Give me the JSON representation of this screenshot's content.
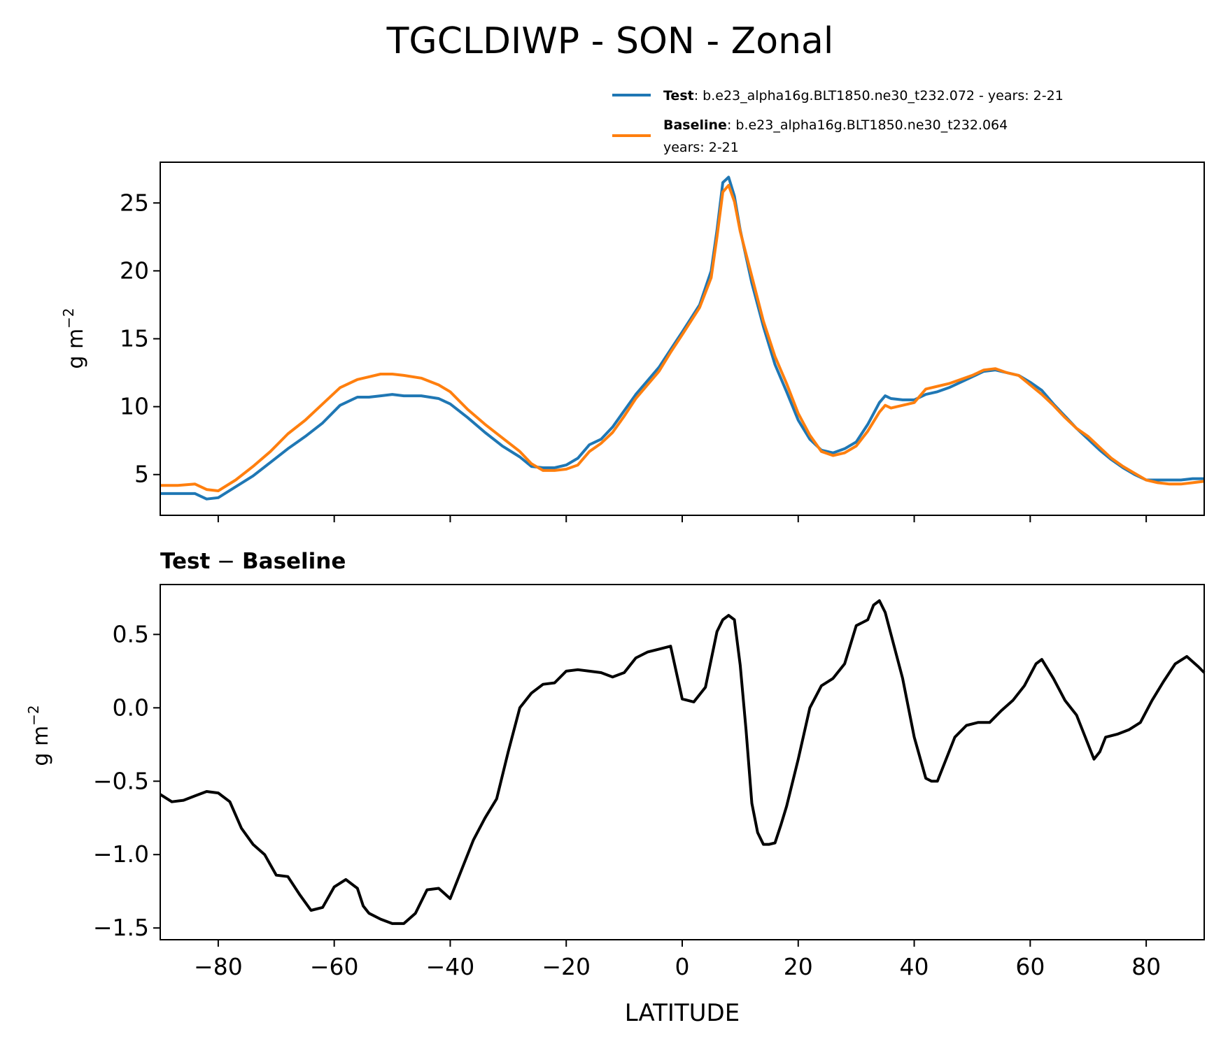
{
  "figure_title": "TGCLDIWP - SON - Zonal",
  "legend": {
    "test_label": "Test",
    "test_text": ": b.e23_alpha16g.BLT1850.ne30_t232.072 - years: 2-21",
    "baseline_label": "Baseline",
    "baseline_text": ": b.e23_alpha16g.BLT1850.ne30_t232.064",
    "baseline_text2": "years: 2-21"
  },
  "colors": {
    "test": "#1f77b4",
    "baseline": "#ff7f0e",
    "diff": "#000000"
  },
  "top_ylabel": "g m",
  "bottom_ylabel": "g m",
  "ylabel_exponent": "−2",
  "bottom_title_left": "Test",
  "bottom_title_sep": " − ",
  "bottom_title_right": "Baseline",
  "xlabel": "LATITUDE",
  "chart_data": [
    {
      "type": "line",
      "panel": "top",
      "title": "TGCLDIWP - SON - Zonal",
      "xlabel": "",
      "ylabel": "g m−2",
      "xlim": [
        -90,
        90
      ],
      "ylim": [
        2,
        28
      ],
      "xticks": [
        -80,
        -60,
        -40,
        -20,
        0,
        20,
        40,
        60,
        80
      ],
      "yticks": [
        5,
        10,
        15,
        20,
        25
      ],
      "ytick_labels": [
        "5",
        "10",
        "15",
        "20",
        "25"
      ],
      "series": [
        {
          "name": "Test",
          "x": [
            -90,
            -87,
            -84,
            -82,
            -80,
            -77,
            -74,
            -71,
            -68,
            -65,
            -62,
            -59,
            -56,
            -54,
            -52,
            -50,
            -48,
            -45,
            -42,
            -40,
            -37,
            -34,
            -31,
            -28,
            -26,
            -24,
            -22,
            -20,
            -18,
            -16,
            -14,
            -12,
            -10,
            -8,
            -6,
            -4,
            -2,
            0,
            3,
            5,
            6,
            7,
            8,
            9,
            10,
            12,
            14,
            16,
            18,
            20,
            22,
            24,
            26,
            28,
            30,
            32,
            34,
            35,
            36,
            38,
            40,
            42,
            44,
            46,
            48,
            50,
            52,
            54,
            56,
            58,
            60,
            62,
            64,
            66,
            68,
            70,
            72,
            74,
            76,
            78,
            80,
            82,
            84,
            86,
            88,
            90
          ],
          "values": [
            3.6,
            3.6,
            3.6,
            3.2,
            3.3,
            4.1,
            4.9,
            5.9,
            6.9,
            7.8,
            8.8,
            10.1,
            10.7,
            10.7,
            10.8,
            10.9,
            10.8,
            10.8,
            10.6,
            10.2,
            9.2,
            8.1,
            7.1,
            6.3,
            5.6,
            5.5,
            5.5,
            5.7,
            6.2,
            7.2,
            7.6,
            8.5,
            9.7,
            10.9,
            11.9,
            12.9,
            14.2,
            15.5,
            17.5,
            20,
            23,
            26.5,
            26.9,
            25.5,
            23,
            19.1,
            15.9,
            13.1,
            11.1,
            9,
            7.6,
            6.8,
            6.6,
            6.9,
            7.4,
            8.7,
            10.3,
            10.8,
            10.6,
            10.5,
            10.5,
            10.9,
            11.1,
            11.4,
            11.8,
            12.2,
            12.6,
            12.7,
            12.5,
            12.3,
            11.8,
            11.2,
            10.2,
            9.3,
            8.4,
            7.6,
            6.8,
            6.1,
            5.5,
            5,
            4.6,
            4.6,
            4.6,
            4.6,
            4.7,
            4.7
          ]
        },
        {
          "name": "Baseline",
          "x": [
            -90,
            -87,
            -84,
            -82,
            -80,
            -77,
            -74,
            -71,
            -68,
            -65,
            -62,
            -59,
            -56,
            -54,
            -52,
            -50,
            -48,
            -45,
            -42,
            -40,
            -37,
            -34,
            -31,
            -28,
            -26,
            -24,
            -22,
            -20,
            -18,
            -16,
            -14,
            -12,
            -10,
            -8,
            -6,
            -4,
            -2,
            0,
            3,
            5,
            6,
            7,
            8,
            9,
            10,
            12,
            14,
            16,
            18,
            20,
            22,
            24,
            26,
            28,
            30,
            32,
            34,
            35,
            36,
            38,
            40,
            42,
            44,
            46,
            48,
            50,
            52,
            54,
            56,
            58,
            60,
            62,
            64,
            66,
            68,
            70,
            72,
            74,
            76,
            78,
            80,
            82,
            84,
            86,
            88,
            90
          ],
          "values": [
            4.2,
            4.2,
            4.3,
            3.9,
            3.8,
            4.6,
            5.6,
            6.7,
            8,
            9,
            10.2,
            11.4,
            12,
            12.2,
            12.4,
            12.4,
            12.3,
            12.1,
            11.6,
            11.1,
            9.8,
            8.7,
            7.7,
            6.7,
            5.8,
            5.3,
            5.3,
            5.4,
            5.7,
            6.7,
            7.3,
            8.1,
            9.3,
            10.6,
            11.6,
            12.6,
            14,
            15.3,
            17.3,
            19.5,
            22.5,
            25.8,
            26.3,
            25.1,
            22.9,
            19.6,
            16.3,
            13.7,
            11.7,
            9.5,
            7.9,
            6.7,
            6.4,
            6.6,
            7.1,
            8.2,
            9.6,
            10.1,
            9.9,
            10.1,
            10.3,
            11.3,
            11.5,
            11.7,
            12,
            12.3,
            12.7,
            12.8,
            12.5,
            12.3,
            11.6,
            10.9,
            10.1,
            9.2,
            8.4,
            7.8,
            7,
            6.2,
            5.6,
            5.1,
            4.6,
            4.4,
            4.3,
            4.3,
            4.4,
            4.5
          ]
        }
      ]
    },
    {
      "type": "line",
      "panel": "bottom",
      "title": "Test − Baseline",
      "xlabel": "LATITUDE",
      "ylabel": "g m−2",
      "xlim": [
        -90,
        90
      ],
      "ylim": [
        -1.58,
        0.84
      ],
      "xticks": [
        -80,
        -60,
        -40,
        -20,
        0,
        20,
        40,
        60,
        80
      ],
      "xtick_labels": [
        "−80",
        "−60",
        "−40",
        "−20",
        "0",
        "20",
        "40",
        "60",
        "80"
      ],
      "yticks": [
        0.5,
        0,
        -0.5,
        -1,
        -1.5
      ],
      "ytick_labels": [
        "0.5",
        "0.0",
        "−0.5",
        "−1.0",
        "−1.5"
      ],
      "series": [
        {
          "name": "Test − Baseline",
          "x": [
            -90,
            -88,
            -86,
            -84,
            -82,
            -80,
            -78,
            -76,
            -74,
            -72,
            -70,
            -68,
            -66,
            -64,
            -62,
            -60,
            -58,
            -56,
            -55,
            -54,
            -52,
            -50,
            -48,
            -46,
            -44,
            -42,
            -40,
            -38,
            -36,
            -34,
            -32,
            -30,
            -28,
            -26,
            -24,
            -22,
            -20,
            -18,
            -16,
            -14,
            -12,
            -10,
            -8,
            -6,
            -4,
            -2,
            0,
            2,
            4,
            6,
            7,
            8,
            9,
            10,
            11,
            12,
            13,
            14,
            15,
            16,
            17,
            18,
            20,
            22,
            24,
            26,
            28,
            30,
            31,
            32,
            33,
            34,
            35,
            36,
            38,
            40,
            42,
            43,
            44,
            45,
            47,
            49,
            51,
            53,
            55,
            57,
            59,
            61,
            62,
            64,
            66,
            68,
            70,
            71,
            72,
            73,
            75,
            77,
            79,
            81,
            83,
            85,
            87,
            89,
            90
          ],
          "values": [
            -0.59,
            -0.64,
            -0.63,
            -0.6,
            -0.57,
            -0.58,
            -0.64,
            -0.82,
            -0.93,
            -1.0,
            -1.14,
            -1.15,
            -1.27,
            -1.38,
            -1.36,
            -1.22,
            -1.17,
            -1.23,
            -1.35,
            -1.4,
            -1.44,
            -1.47,
            -1.47,
            -1.4,
            -1.24,
            -1.23,
            -1.3,
            -1.1,
            -0.9,
            -0.75,
            -0.62,
            -0.3,
            0.0,
            0.1,
            0.16,
            0.17,
            0.25,
            0.26,
            0.25,
            0.24,
            0.21,
            0.24,
            0.34,
            0.38,
            0.4,
            0.42,
            0.06,
            0.04,
            0.14,
            0.52,
            0.6,
            0.63,
            0.6,
            0.29,
            -0.15,
            -0.65,
            -0.85,
            -0.93,
            -0.93,
            -0.92,
            -0.8,
            -0.67,
            -0.35,
            0.0,
            0.15,
            0.2,
            0.3,
            0.56,
            0.58,
            0.6,
            0.7,
            0.73,
            0.65,
            0.5,
            0.2,
            -0.2,
            -0.48,
            -0.5,
            -0.5,
            -0.4,
            -0.2,
            -0.12,
            -0.1,
            -0.1,
            -0.02,
            0.05,
            0.15,
            0.3,
            0.33,
            0.2,
            0.05,
            -0.05,
            -0.25,
            -0.35,
            -0.3,
            -0.2,
            -0.18,
            -0.15,
            -0.1,
            0.05,
            0.18,
            0.3,
            0.35,
            0.28,
            0.24
          ]
        }
      ]
    }
  ]
}
